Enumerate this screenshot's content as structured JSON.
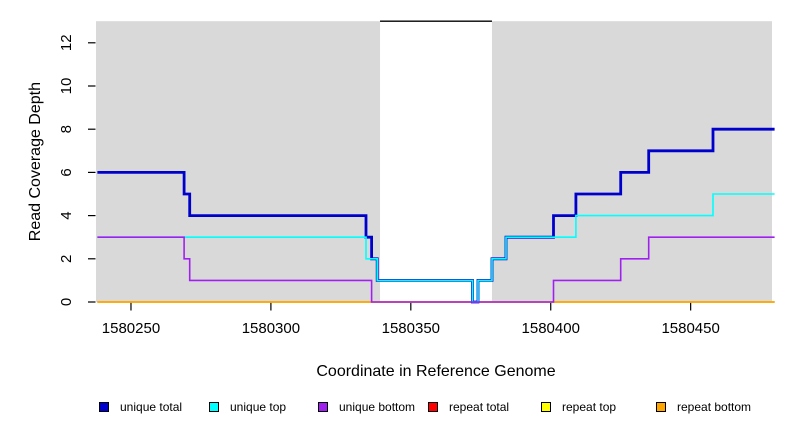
{
  "figure": {
    "background": "#ffffff",
    "text_color": "#000000"
  },
  "chart_data": {
    "type": "line",
    "subtype": "step",
    "title": "",
    "xlabel": "Coordinate in Reference Genome",
    "ylabel": "Read Coverage Depth",
    "xlim": [
      1580237.5,
      1580480.5
    ],
    "ylim": [
      0,
      13
    ],
    "x_ticks": [
      1580250,
      1580300,
      1580350,
      1580400,
      1580450
    ],
    "y_ticks": [
      0,
      2,
      4,
      6,
      8,
      10,
      12
    ],
    "grid": false,
    "plot_bg_color": "#d9d9d9",
    "gap_region": {
      "x_start": 1580339,
      "x_end": 1580379,
      "fill": "#ffffff",
      "top_edge_value": 13,
      "top_edge_color": "#000000"
    },
    "legend_position": "bottom",
    "series": [
      {
        "name": "repeat total",
        "color": "#ff0000",
        "width": 1.5,
        "points": [
          [
            1580238,
            0
          ],
          [
            1580480,
            0
          ]
        ]
      },
      {
        "name": "repeat top",
        "color": "#ffff00",
        "width": 1.5,
        "points": [
          [
            1580238,
            0
          ],
          [
            1580480,
            0
          ]
        ]
      },
      {
        "name": "repeat bottom",
        "color": "#ffa500",
        "width": 1.5,
        "points": [
          [
            1580238,
            0
          ],
          [
            1580480,
            0
          ]
        ]
      },
      {
        "name": "unique total",
        "color": "#0000cd",
        "width": 2.8,
        "points": [
          [
            1580238,
            6
          ],
          [
            1580269,
            6
          ],
          [
            1580269,
            5
          ],
          [
            1580271,
            5
          ],
          [
            1580271,
            4
          ],
          [
            1580334,
            4
          ],
          [
            1580334,
            3
          ],
          [
            1580336,
            3
          ],
          [
            1580336,
            2
          ],
          [
            1580338,
            2
          ],
          [
            1580338,
            1
          ],
          [
            1580372,
            1
          ],
          [
            1580372,
            0
          ],
          [
            1580374,
            0
          ],
          [
            1580374,
            1
          ],
          [
            1580379,
            1
          ],
          [
            1580379,
            2
          ],
          [
            1580384,
            2
          ],
          [
            1580384,
            3
          ],
          [
            1580401,
            3
          ],
          [
            1580401,
            4
          ],
          [
            1580409,
            4
          ],
          [
            1580409,
            5
          ],
          [
            1580425,
            5
          ],
          [
            1580425,
            6
          ],
          [
            1580435,
            6
          ],
          [
            1580435,
            7
          ],
          [
            1580458,
            7
          ],
          [
            1580458,
            8
          ],
          [
            1580480,
            8
          ]
        ]
      },
      {
        "name": "unique top",
        "color": "#00ffff",
        "width": 1.6,
        "points": [
          [
            1580238,
            3
          ],
          [
            1580334,
            3
          ],
          [
            1580334,
            2
          ],
          [
            1580338,
            2
          ],
          [
            1580338,
            1
          ],
          [
            1580372,
            1
          ],
          [
            1580372,
            0
          ],
          [
            1580374,
            0
          ],
          [
            1580374,
            1
          ],
          [
            1580379,
            1
          ],
          [
            1580379,
            2
          ],
          [
            1580384,
            2
          ],
          [
            1580384,
            3
          ],
          [
            1580409,
            3
          ],
          [
            1580409,
            4
          ],
          [
            1580458,
            4
          ],
          [
            1580458,
            5
          ],
          [
            1580480,
            5
          ]
        ]
      },
      {
        "name": "unique bottom",
        "color": "#a020f0",
        "width": 1.6,
        "points": [
          [
            1580238,
            3
          ],
          [
            1580269,
            3
          ],
          [
            1580269,
            2
          ],
          [
            1580271,
            2
          ],
          [
            1580271,
            1
          ],
          [
            1580336,
            1
          ],
          [
            1580336,
            0
          ],
          [
            1580401,
            0
          ],
          [
            1580401,
            1
          ],
          [
            1580425,
            1
          ],
          [
            1580425,
            2
          ],
          [
            1580435,
            2
          ],
          [
            1580435,
            3
          ],
          [
            1580480,
            3
          ]
        ]
      }
    ]
  },
  "legend": {
    "items": [
      {
        "label": "unique total",
        "color": "#0000cd"
      },
      {
        "label": "unique top",
        "color": "#00ffff"
      },
      {
        "label": "unique bottom",
        "color": "#a020f0"
      },
      {
        "label": "repeat total",
        "color": "#ff0000"
      },
      {
        "label": "repeat top",
        "color": "#ffff00"
      },
      {
        "label": "repeat bottom",
        "color": "#ffa500"
      }
    ]
  }
}
